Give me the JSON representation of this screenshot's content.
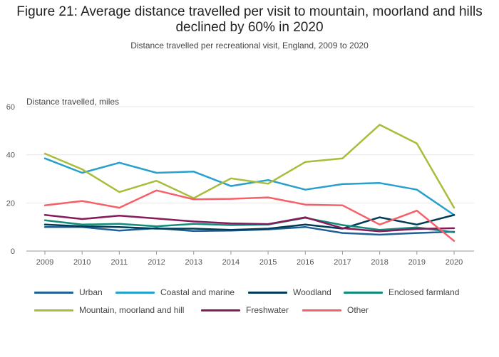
{
  "chart_data": {
    "type": "line",
    "title": "Figure 21: Average distance travelled per visit to mountain, moorland and hills declined by 60% in 2020",
    "subtitle": "Distance travelled per recreational visit, England, 2009 to 2020",
    "ylabel": "Distance travelled, miles",
    "xlabel": "",
    "ylim": [
      0,
      60
    ],
    "yticks": [
      "0",
      "20",
      "40",
      "60"
    ],
    "categories": [
      "2009",
      "2010",
      "2011",
      "2012",
      "2013",
      "2014",
      "2015",
      "2016",
      "2017",
      "2018",
      "2019",
      "2020"
    ],
    "grid": true,
    "legend_position": "bottom",
    "series": [
      {
        "name": "Urban",
        "color": "#206095",
        "values": [
          10,
          10,
          8.5,
          9.5,
          8.3,
          8.5,
          9,
          10,
          7.5,
          6.8,
          7.5,
          8
        ]
      },
      {
        "name": "Coastal and marine",
        "color": "#27a0cc",
        "values": [
          38.5,
          32.5,
          36.7,
          32.5,
          33,
          27,
          29.5,
          25.5,
          27.8,
          28.3,
          25.5,
          15
        ]
      },
      {
        "name": "Woodland",
        "color": "#003c57",
        "values": [
          11,
          10.3,
          10,
          9.3,
          9.3,
          8.8,
          9.3,
          11,
          9.3,
          14,
          11,
          15
        ]
      },
      {
        "name": "Enclosed farmland",
        "color": "#118c7b",
        "values": [
          12.8,
          11,
          11.3,
          10.3,
          11.3,
          10.8,
          11,
          13.8,
          10.8,
          8.8,
          9.8,
          7.8
        ]
      },
      {
        "name": "Mountain, moorland and hill",
        "color": "#a8bd3a",
        "values": [
          40.5,
          34,
          24.5,
          29.2,
          22,
          30.2,
          28,
          37,
          38.5,
          52.5,
          44.7,
          18
        ]
      },
      {
        "name": "Freshwater",
        "color": "#871a5b",
        "values": [
          15,
          13.3,
          14.7,
          13.5,
          12.3,
          11.5,
          11.2,
          14,
          9.5,
          8.2,
          9.2,
          9.5
        ]
      },
      {
        "name": "Other",
        "color": "#f66068",
        "values": [
          19,
          20.8,
          18,
          25.2,
          21.5,
          21.7,
          22.3,
          19.3,
          19,
          11,
          16.8,
          4.2
        ]
      }
    ]
  }
}
